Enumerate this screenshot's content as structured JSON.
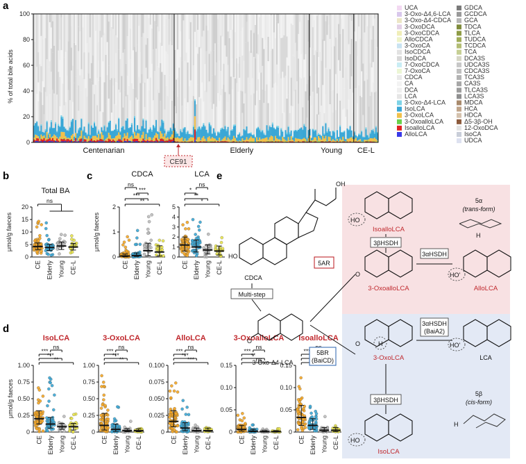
{
  "panel_labels": [
    "a",
    "b",
    "c",
    "d",
    "e"
  ],
  "colors": {
    "red_label": "#c0282d",
    "CE": "#f5a623",
    "Elderly": "#3aa7d6",
    "Young": "#bdbdbd",
    "CE_L": "#e8e34a",
    "pink_box": "#f8e1e3",
    "blue_box": "#e3e9f5"
  },
  "chart_data": [
    {
      "panel": "a",
      "type": "bar",
      "stacked": true,
      "ylabel": "% of total bile acids",
      "ylim": [
        0,
        100
      ],
      "yticks": [
        0,
        20,
        40,
        60,
        80,
        100
      ],
      "groups": [
        "Centenarian",
        "Elderly",
        "Young",
        "CE-L"
      ],
      "group_sample_fraction": [
        0.41,
        0.39,
        0.13,
        0.07
      ],
      "callout": "CE91",
      "legend_col1": [
        "UCA",
        "3-Oxo-Δ4,6-LCA",
        "3-Oxo-Δ4-CDCA",
        "3-OxoDCA",
        "3-OxoCDCA",
        "AlloCDCA",
        "3-OxoCA",
        "IsoCDCA",
        "IsoDCA",
        "7-OxoCDCA",
        "7-OxoCA",
        "CDCA",
        "CA",
        "DCA",
        "LCA",
        "3-Oxo-Δ4-LCA",
        "IsoLCA",
        "3-OxoLCA",
        "3-OxoalloLCA",
        "IsoalloLCA",
        "AlloLCA"
      ],
      "legend_col1_colors": [
        "#f3d9f2",
        "#d9c8ec",
        "#ece6c6",
        "#e3d1e6",
        "#f0eeb8",
        "#eef3c9",
        "#c9e3f1",
        "#e2e2e2",
        "#d8d8d8",
        "#c9edf4",
        "#ecf6d5",
        "#e9e9e9",
        "#f3f3f3",
        "#efefef",
        "#e6e6e6",
        "#7ed3e7",
        "#3aa7d6",
        "#f1c04a",
        "#6ad14b",
        "#e02222",
        "#3a3ae8"
      ],
      "legend_col1_red": [
        false,
        false,
        false,
        false,
        false,
        false,
        false,
        false,
        false,
        false,
        false,
        false,
        false,
        false,
        false,
        false,
        true,
        true,
        true,
        true,
        true
      ],
      "legend_col2": [
        "GDCA",
        "GCDCA",
        "GCA",
        "TDCA",
        "TLCA",
        "TUDCA",
        "TCDCA",
        "TCA",
        "DCA3S",
        "UDCA3S",
        "CDCA3S",
        "TCA3S",
        "CA3S",
        "TLCA3S",
        "LCA3S",
        "MDCA",
        "HCA",
        "HDCA",
        "Δ5-3β-OH",
        "12-OxoDCA",
        "IsoCA",
        "UDCA"
      ],
      "legend_col2_colors": [
        "#7a7a7a",
        "#9a9a9a",
        "#b6b6b6",
        "#7f8c3c",
        "#8e9b46",
        "#a0ad58",
        "#b3bd74",
        "#c6cf94",
        "#d6d6c6",
        "#c8c8c8",
        "#bfbfbf",
        "#b3b3b3",
        "#a7a7a7",
        "#9c9c9c",
        "#8f8f8f",
        "#a88a6c",
        "#bfa48a",
        "#d4c1ad",
        "#8c5a3c",
        "#e3e3e3",
        "#c9ced9",
        "#dde1f0"
      ],
      "series_order_bottom_up": [
        "AlloLCA",
        "IsoalloLCA",
        "3-OxoalloLCA",
        "3-OxoLCA",
        "IsoLCA",
        "3-Oxo-Δ4-LCA",
        "other"
      ]
    },
    {
      "panel": "b",
      "type": "scatter",
      "title": "Total BA",
      "ylabel": "μmol/g faeces",
      "ylim": [
        0,
        20
      ],
      "yticks": [
        0,
        5,
        10,
        15,
        20
      ],
      "categories": [
        "CE",
        "Elderly",
        "Young",
        "CE-L"
      ],
      "median": [
        4.2,
        3.8,
        4.4,
        4.0
      ],
      "iqr": [
        [
          3.0,
          5.6
        ],
        [
          2.6,
          5.0
        ],
        [
          3.0,
          6.0
        ],
        [
          2.8,
          5.4
        ]
      ],
      "spread": [
        [
          0.8,
          14.5
        ],
        [
          0.6,
          14.0
        ],
        [
          1.0,
          12.5
        ],
        [
          1.2,
          9.0
        ]
      ],
      "n": [
        62,
        46,
        24,
        20
      ],
      "sig": [
        {
          "from": 0,
          "to_group": [
            1,
            2,
            3
          ],
          "label": "ns"
        }
      ]
    },
    {
      "panel": "c1",
      "type": "scatter",
      "title": "CDCA",
      "ylabel": "μmol/g faeces",
      "ylim": [
        0,
        2
      ],
      "yticks": [
        0,
        1,
        2
      ],
      "categories": [
        "CE",
        "Elderly",
        "Young",
        "CE-L"
      ],
      "median": [
        0.04,
        0.06,
        0.25,
        0.2
      ],
      "iqr": [
        [
          0.01,
          0.12
        ],
        [
          0.02,
          0.16
        ],
        [
          0.05,
          0.55
        ],
        [
          0.04,
          0.45
        ]
      ],
      "spread": [
        [
          0,
          0.9
        ],
        [
          0,
          1.1
        ],
        [
          0,
          1.75
        ],
        [
          0,
          1.0
        ]
      ],
      "n": [
        62,
        46,
        24,
        20
      ],
      "sig": [
        {
          "from": 0,
          "to": 3,
          "label": "**"
        },
        {
          "from": 0,
          "to": 2,
          "label": "***"
        },
        {
          "from": 1,
          "to": 2,
          "label": "***"
        },
        {
          "from": 0,
          "to": 1,
          "label": "ns"
        }
      ]
    },
    {
      "panel": "c2",
      "type": "scatter",
      "title": "LCA",
      "ylim": [
        0,
        5
      ],
      "yticks": [
        0,
        1,
        2,
        3,
        4,
        5
      ],
      "categories": [
        "CE",
        "Elderly",
        "Young",
        "CE-L"
      ],
      "median": [
        1.2,
        1.0,
        0.7,
        0.6
      ],
      "iqr": [
        [
          0.6,
          2.0
        ],
        [
          0.5,
          1.7
        ],
        [
          0.3,
          1.2
        ],
        [
          0.2,
          1.1
        ]
      ],
      "spread": [
        [
          0,
          4.3
        ],
        [
          0,
          3.9
        ],
        [
          0,
          3.0
        ],
        [
          0,
          2.4
        ]
      ],
      "n": [
        62,
        46,
        24,
        20
      ],
      "sig": [
        {
          "from": 0,
          "to": 3,
          "label": "*"
        },
        {
          "from": 0,
          "to": 2,
          "label": "**"
        },
        {
          "from": 0,
          "to": 1,
          "label": "*"
        },
        {
          "from": 1,
          "to": 2,
          "label": "ns"
        }
      ]
    },
    {
      "panel": "d1",
      "type": "scatter",
      "title": "IsoLCA",
      "ylabel": "μmol/g faeces",
      "ylim": [
        0,
        1.0
      ],
      "yticks": [
        0,
        0.25,
        0.5,
        0.75,
        1.0
      ],
      "yticklabels": [
        "0",
        "0.25",
        "0.50",
        "0.75",
        "1.00"
      ],
      "categories": [
        "CE",
        "Elderly",
        "Young",
        "CE-L"
      ],
      "median": [
        0.2,
        0.12,
        0.08,
        0.08
      ],
      "iqr": [
        [
          0.12,
          0.32
        ],
        [
          0.06,
          0.22
        ],
        [
          0.04,
          0.13
        ],
        [
          0.03,
          0.13
        ]
      ],
      "spread": [
        [
          0,
          0.75
        ],
        [
          0,
          0.95
        ],
        [
          0,
          0.32
        ],
        [
          0,
          0.3
        ]
      ],
      "n": [
        62,
        46,
        24,
        20
      ],
      "sig": [
        {
          "from": 0,
          "to": 3,
          "label": "**"
        },
        {
          "from": 0,
          "to": 2,
          "label": "***"
        },
        {
          "from": 0,
          "to": 1,
          "label": "***"
        },
        {
          "from": 1,
          "to": 2,
          "label": "ns"
        }
      ]
    },
    {
      "panel": "d2",
      "type": "scatter",
      "title": "3-OxoLCA",
      "ylim": [
        0,
        1.0
      ],
      "yticks": [
        0,
        0.25,
        0.5,
        0.75,
        1.0
      ],
      "yticklabels": [
        "0",
        "0.25",
        "0.50",
        "0.75",
        "1.00"
      ],
      "categories": [
        "CE",
        "Elderly",
        "Young",
        "CE-L"
      ],
      "median": [
        0.1,
        0.04,
        0.02,
        0.02
      ],
      "iqr": [
        [
          0.03,
          0.28
        ],
        [
          0.01,
          0.12
        ],
        [
          0.005,
          0.05
        ],
        [
          0.005,
          0.05
        ]
      ],
      "spread": [
        [
          0,
          0.95
        ],
        [
          0,
          0.5
        ],
        [
          0,
          0.25
        ],
        [
          0,
          0.12
        ]
      ],
      "n": [
        62,
        46,
        24,
        20
      ],
      "sig": [
        {
          "from": 0,
          "to": 3,
          "label": "**"
        },
        {
          "from": 0,
          "to": 2,
          "label": "***"
        },
        {
          "from": 0,
          "to": 1,
          "label": "***"
        },
        {
          "from": 1,
          "to": 2,
          "label": "ns"
        }
      ]
    },
    {
      "panel": "d3",
      "type": "scatter",
      "title": "AlloLCA",
      "ylim": [
        0,
        0.1
      ],
      "yticks": [
        0,
        0.025,
        0.05,
        0.075,
        0.1
      ],
      "yticklabels": [
        "0",
        "0.025",
        "0.050",
        "0.075",
        "0.100"
      ],
      "categories": [
        "CE",
        "Elderly",
        "Young",
        "CE-L"
      ],
      "median": [
        0.016,
        0.006,
        0.002,
        0.002
      ],
      "iqr": [
        [
          0.008,
          0.032
        ],
        [
          0.002,
          0.014
        ],
        [
          0.001,
          0.006
        ],
        [
          0.001,
          0.006
        ]
      ],
      "spread": [
        [
          0,
          0.095
        ],
        [
          0,
          0.05
        ],
        [
          0,
          0.02
        ],
        [
          0,
          0.015
        ]
      ],
      "n": [
        62,
        46,
        24,
        20
      ],
      "sig": [
        {
          "from": 0,
          "to": 3,
          "label": "***"
        },
        {
          "from": 0,
          "to": 2,
          "label": "***"
        },
        {
          "from": 0,
          "to": 1,
          "label": "***"
        },
        {
          "from": 1,
          "to": 2,
          "label": "ns"
        }
      ]
    },
    {
      "panel": "d4",
      "type": "scatter",
      "title": "3-OxoalloLCA",
      "ylim": [
        0,
        0.15
      ],
      "yticks": [
        0,
        0.05,
        0.1,
        0.15
      ],
      "yticklabels": [
        "0",
        "0.05",
        "0.10",
        "0.15"
      ],
      "categories": [
        "CE",
        "Elderly",
        "Young",
        "CE-L"
      ],
      "median": [
        0.006,
        0.002,
        0.001,
        0.001
      ],
      "iqr": [
        [
          0.002,
          0.015
        ],
        [
          0.0005,
          0.006
        ],
        [
          0.0002,
          0.003
        ],
        [
          0.0002,
          0.003
        ]
      ],
      "spread": [
        [
          0,
          0.045
        ],
        [
          0,
          0.02
        ],
        [
          0,
          0.01
        ],
        [
          0,
          0.008
        ]
      ],
      "n": [
        62,
        46,
        24,
        20
      ],
      "sig": [
        {
          "from": 0,
          "to": 3,
          "label": "ns"
        },
        {
          "from": 0,
          "to": 2,
          "label": "**"
        },
        {
          "from": 0,
          "to": 1,
          "label": "***"
        },
        {
          "from": 1,
          "to": 2,
          "label": "ns"
        }
      ]
    },
    {
      "panel": "d5",
      "type": "scatter",
      "title": "IsoalloLCA",
      "ylim": [
        0,
        0.15
      ],
      "yticks": [
        0,
        0.05,
        0.1,
        0.15
      ],
      "yticklabels": [
        "0",
        "0.05",
        "0.10",
        "0.15"
      ],
      "categories": [
        "CE",
        "Elderly",
        "Young",
        "CE-L"
      ],
      "median": [
        0.033,
        0.015,
        0.004,
        0.004
      ],
      "iqr": [
        [
          0.015,
          0.06
        ],
        [
          0.006,
          0.03
        ],
        [
          0.001,
          0.01
        ],
        [
          0.001,
          0.01
        ]
      ],
      "spread": [
        [
          0,
          0.135
        ],
        [
          0,
          0.07
        ],
        [
          0,
          0.04
        ],
        [
          0,
          0.03
        ]
      ],
      "n": [
        62,
        46,
        24,
        20
      ],
      "sig": [
        {
          "from": 0,
          "to": 3,
          "label": "***"
        },
        {
          "from": 0,
          "to": 2,
          "label": "***"
        },
        {
          "from": 0,
          "to": 1,
          "label": "***"
        },
        {
          "from": 1,
          "to": 2,
          "label": "ns"
        }
      ]
    }
  ],
  "pathway": {
    "molecules": {
      "cdca": "CDCA",
      "oxo_d4_lca": "3-Oxo-Δ4-LCA",
      "isoallolca": "IsoalloLCA",
      "oxoallolca": "3-OxoalloLCA",
      "allolca": "AlloLCA",
      "oxolca": "3-OxoLCA",
      "lca": "LCA",
      "isolca": "IsoLCA"
    },
    "enzymes": {
      "multistep": "Multi-step",
      "ar5": "5AR",
      "br5": "5BR",
      "baicd": "(BaiCD)",
      "hsdh3b_top": "3βHSDH",
      "hsdh3a_top": "3αHSDH",
      "hsdh3a_bot": "3αHSDH",
      "baia2": "(BaiA2)",
      "hsdh3b_bot": "3βHSDH"
    },
    "forms": {
      "alpha_greek": "5α",
      "alpha_word": "(trans-form)",
      "beta_greek": "5β",
      "beta_word": "(cis-form)"
    },
    "atoms": {
      "oh": "HO",
      "o": "O",
      "h": "H",
      "ho_prime": "HO'",
      "oh_suffix": "OH"
    }
  }
}
